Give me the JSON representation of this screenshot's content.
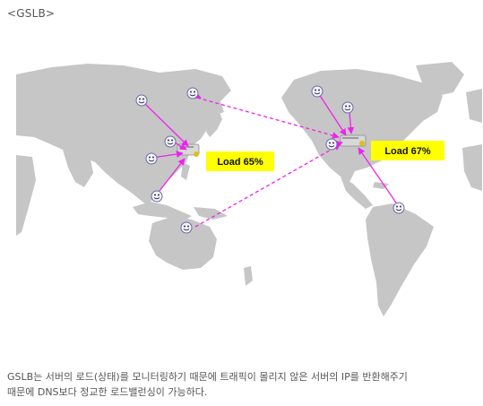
{
  "heading": "<GSLB>",
  "map": {
    "left_datacenter": {
      "load_label": "Load 65%"
    },
    "right_datacenter": {
      "load_label": "Load 67%"
    },
    "colors": {
      "land": "#c6c6c6",
      "active_link": "#ee22ee",
      "label_bg": "#ffff00"
    },
    "icons": {
      "client": "smiley-face-icon",
      "datacenter": "server-icon"
    }
  },
  "caption": {
    "line1": "GSLB는 서버의 로드(상태)를 모니터링하기 때문에 트래픽이 몰리지 않은 서버의 IP를 반환해주기",
    "line2": "때문에 DNS보다 정교한 로드밸런싱이 가능하다."
  }
}
